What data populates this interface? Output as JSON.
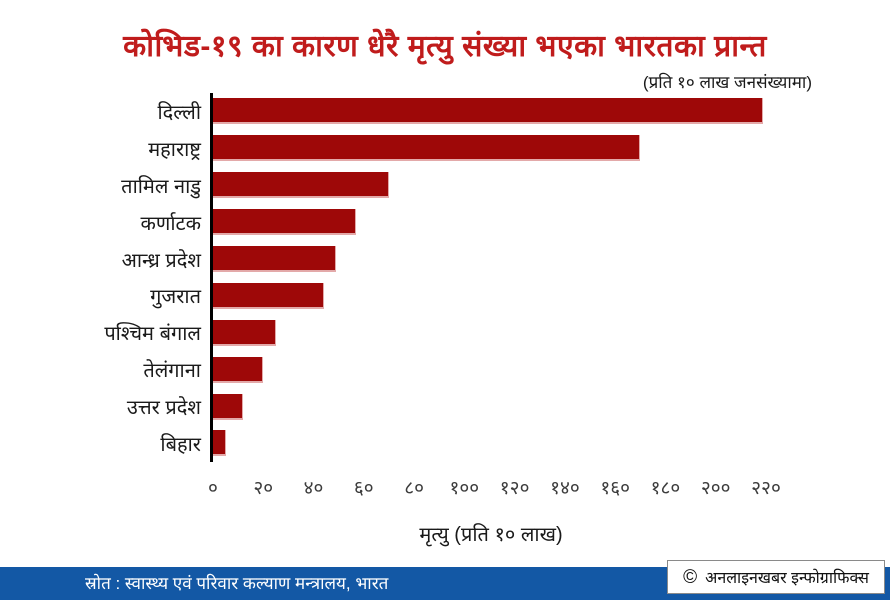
{
  "title": "कोभिड-१९ का कारण धेरै मृत्यु संख्या भएका भारतका प्रान्त",
  "subtitle": "(प्रति १० लाख जनसंख्यामा)",
  "chart_data": {
    "type": "bar",
    "orientation": "horizontal",
    "title": "कोभिड-१९ का कारण धेरै मृत्यु संख्या भएका भारतका प्रान्त",
    "subtitle": "(प्रति १० लाख जनसंख्यामा)",
    "categories": [
      "दिल्ली",
      "महाराष्ट्र",
      "तामिल नाडु",
      "कर्णाटक",
      "आन्ध्र प्रदेश",
      "गुजरात",
      "पश्चिम बंगाल",
      "तेलंगाना",
      "उत्तर प्रदेश",
      "बिहार"
    ],
    "values": [
      219,
      170,
      70,
      57,
      49,
      44,
      25,
      20,
      12,
      5
    ],
    "xlabel": "मृत्यु (प्रति १० लाख)",
    "ylabel": "",
    "xlim": [
      0,
      220
    ],
    "x_tick_values": [
      0,
      20,
      40,
      60,
      80,
      100,
      120,
      140,
      160,
      180,
      200,
      220
    ],
    "x_tick_labels": [
      "०",
      "२०",
      "४०",
      "६०",
      "८०",
      "१००",
      "१२०",
      "१४०",
      "१६०",
      "१८०",
      "२००",
      "२२०"
    ],
    "grid": false,
    "legend": false,
    "bar_color": "#9e0808"
  },
  "footer": {
    "source_text": "स्रोत : स्वास्थ्य एवं परिवार कल्याण मन्त्रालय, भारत",
    "copyright_symbol": "©",
    "credit_text": "अनलाइनखबर इन्फोग्राफिक्स"
  },
  "colors": {
    "title_red": "#c01c1c",
    "bar_red": "#9e0808",
    "footer_blue": "#1358a5",
    "axis_black": "#000000"
  }
}
